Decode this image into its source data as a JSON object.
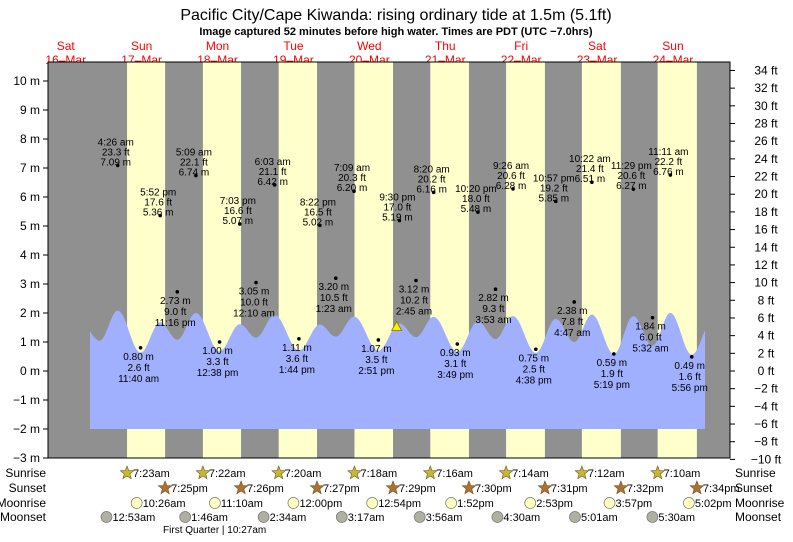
{
  "chart_data": {
    "type": "area",
    "title": "Pacific City/Cape Kiwanda: rising  ordinary tide at 1.5m (5.1ft)",
    "subtitle": "Image captured 52 minutes before high water. Times are PDT (UTC −7.0hrs)",
    "y_left_unit": "m",
    "y_right_unit": "ft",
    "ylim_m": [
      -3,
      10
    ],
    "left_ticks": [
      "10 m",
      "9 m",
      "8 m",
      "7 m",
      "6 m",
      "5 m",
      "4 m",
      "3 m",
      "2 m",
      "1 m",
      "0 m",
      "−1 m",
      "−2 m",
      "−3 m"
    ],
    "right_ticks": [
      "34 ft",
      "32 ft",
      "30 ft",
      "28 ft",
      "26 ft",
      "24 ft",
      "22 ft",
      "20 ft",
      "18 ft",
      "16 ft",
      "14 ft",
      "12 ft",
      "10 ft",
      "8 ft",
      "6 ft",
      "4 ft",
      "2 ft",
      "0 ft",
      "−2 ft",
      "−4 ft",
      "−6 ft",
      "−8 ft",
      "−10 ft"
    ],
    "days": [
      {
        "dow": "Sat",
        "date": "16–Mar"
      },
      {
        "dow": "Sun",
        "date": "17–Mar"
      },
      {
        "dow": "Mon",
        "date": "18–Mar"
      },
      {
        "dow": "Tue",
        "date": "19–Mar"
      },
      {
        "dow": "Wed",
        "date": "20–Mar"
      },
      {
        "dow": "Thu",
        "date": "21–Mar"
      },
      {
        "dow": "Fri",
        "date": "22–Mar"
      },
      {
        "dow": "Sat",
        "date": "23–Mar"
      },
      {
        "dow": "Sun",
        "date": "24–Mar"
      }
    ],
    "tides": [
      {
        "day": 1,
        "time": "4:26 am",
        "ft": "23.3 ft",
        "m": "7.09 m",
        "h": 7.09,
        "type": "high"
      },
      {
        "day": 1,
        "time": "11:40 am",
        "ft": "2.6 ft",
        "m": "0.80 m",
        "h": 0.8,
        "type": "low"
      },
      {
        "day": 1,
        "time": "5:52 pm",
        "ft": "17.6 ft",
        "m": "5.36 m",
        "h": 5.36,
        "type": "high"
      },
      {
        "day": 1,
        "time": "11:16 pm",
        "ft": "9.0 ft",
        "m": "2.73 m",
        "h": 2.73,
        "type": "low"
      },
      {
        "day": 2,
        "time": "5:09 am",
        "ft": "22.1 ft",
        "m": "6.74 m",
        "h": 6.74,
        "type": "high"
      },
      {
        "day": 2,
        "time": "12:38 pm",
        "ft": "3.3 ft",
        "m": "1.00 m",
        "h": 1.0,
        "type": "low"
      },
      {
        "day": 2,
        "time": "7:03 pm",
        "ft": "16.6 ft",
        "m": "5.07 m",
        "h": 5.07,
        "type": "high"
      },
      {
        "day": 3,
        "time": "12:10 am",
        "ft": "10.0 ft",
        "m": "3.05 m",
        "h": 3.05,
        "type": "low"
      },
      {
        "day": 3,
        "time": "6:03 am",
        "ft": "21.1 ft",
        "m": "6.42 m",
        "h": 6.42,
        "type": "high"
      },
      {
        "day": 3,
        "time": "1:44 pm",
        "ft": "3.6 ft",
        "m": "1.11 m",
        "h": 1.11,
        "type": "low"
      },
      {
        "day": 3,
        "time": "8:22 pm",
        "ft": "16.5 ft",
        "m": "5.02 m",
        "h": 5.02,
        "type": "high"
      },
      {
        "day": 4,
        "time": "1:23 am",
        "ft": "10.5 ft",
        "m": "3.20 m",
        "h": 3.2,
        "type": "low"
      },
      {
        "day": 4,
        "time": "7:09 am",
        "ft": "20.3 ft",
        "m": "6.20 m",
        "h": 6.2,
        "type": "high"
      },
      {
        "day": 4,
        "time": "2:51 pm",
        "ft": "3.5 ft",
        "m": "1.07 m",
        "h": 1.07,
        "type": "low"
      },
      {
        "day": 4,
        "time": "9:30 pm",
        "ft": "17.0 ft",
        "m": "5.19 m",
        "h": 5.19,
        "type": "high"
      },
      {
        "day": 5,
        "time": "2:45 am",
        "ft": "10.2 ft",
        "m": "3.12 m",
        "h": 3.12,
        "type": "low"
      },
      {
        "day": 5,
        "time": "8:20 am",
        "ft": "20.2 ft",
        "m": "6.16 m",
        "h": 6.16,
        "type": "high"
      },
      {
        "day": 5,
        "time": "3:49 pm",
        "ft": "3.1 ft",
        "m": "0.93 m",
        "h": 0.93,
        "type": "low"
      },
      {
        "day": 5,
        "time": "10:20 pm",
        "ft": "18.0 ft",
        "m": "5.48 m",
        "h": 5.48,
        "type": "high"
      },
      {
        "day": 6,
        "time": "3:53 am",
        "ft": "9.3 ft",
        "m": "2.82 m",
        "h": 2.82,
        "type": "low"
      },
      {
        "day": 6,
        "time": "9:26 am",
        "ft": "20.6 ft",
        "m": "6.28 m",
        "h": 6.28,
        "type": "high"
      },
      {
        "day": 6,
        "time": "4:38 pm",
        "ft": "2.5 ft",
        "m": "0.75 m",
        "h": 0.75,
        "type": "low"
      },
      {
        "day": 6,
        "time": "10:57 pm",
        "ft": "19.2 ft",
        "m": "5.85 m",
        "h": 5.85,
        "type": "high"
      },
      {
        "day": 7,
        "time": "4:47 am",
        "ft": "7.8 ft",
        "m": "2.38 m",
        "h": 2.38,
        "type": "low"
      },
      {
        "day": 7,
        "time": "10:22 am",
        "ft": "21.4 ft",
        "m": "6.51 m",
        "h": 6.51,
        "type": "high"
      },
      {
        "day": 7,
        "time": "5:19 pm",
        "ft": "1.9 ft",
        "m": "0.59 m",
        "h": 0.59,
        "type": "low"
      },
      {
        "day": 7,
        "time": "11:29 pm",
        "ft": "20.6 ft",
        "m": "6.27 m",
        "h": 6.27,
        "type": "high"
      },
      {
        "day": 8,
        "time": "5:32 am",
        "ft": "6.0 ft",
        "m": "1.84 m",
        "h": 1.84,
        "type": "low"
      },
      {
        "day": 8,
        "time": "11:11 am",
        "ft": "22.2 ft",
        "m": "6.76 m",
        "h": 6.76,
        "type": "high"
      },
      {
        "day": 8,
        "time": "5:56 pm",
        "ft": "1.6 ft",
        "m": "0.49 m",
        "h": 0.49,
        "type": "low"
      }
    ],
    "current": {
      "day": 4,
      "time": "8:38 pm",
      "level_m": 1.5
    },
    "rows": {
      "sunrise": {
        "label": "Sunrise",
        "events": [
          {
            "day": 1,
            "time": "7:23am"
          },
          {
            "day": 2,
            "time": "7:22am"
          },
          {
            "day": 3,
            "time": "7:20am"
          },
          {
            "day": 4,
            "time": "7:18am"
          },
          {
            "day": 5,
            "time": "7:16am"
          },
          {
            "day": 6,
            "time": "7:14am"
          },
          {
            "day": 7,
            "time": "7:12am"
          },
          {
            "day": 8,
            "time": "7:10am"
          }
        ]
      },
      "sunset": {
        "label": "Sunset",
        "events": [
          {
            "day": 1,
            "time": "7:25pm"
          },
          {
            "day": 2,
            "time": "7:26pm"
          },
          {
            "day": 3,
            "time": "7:27pm"
          },
          {
            "day": 4,
            "time": "7:29pm"
          },
          {
            "day": 5,
            "time": "7:30pm"
          },
          {
            "day": 6,
            "time": "7:31pm"
          },
          {
            "day": 7,
            "time": "7:32pm"
          },
          {
            "day": 8,
            "time": "7:34pm"
          }
        ]
      },
      "moonrise": {
        "label": "Moonrise",
        "events": [
          {
            "day": 1,
            "time": "10:26am"
          },
          {
            "day": 2,
            "time": "11:10am"
          },
          {
            "day": 3,
            "time": "12:00pm"
          },
          {
            "day": 4,
            "time": "12:54pm"
          },
          {
            "day": 5,
            "time": "1:52pm"
          },
          {
            "day": 6,
            "time": "2:53pm"
          },
          {
            "day": 7,
            "time": "3:57pm"
          },
          {
            "day": 8,
            "time": "5:02pm"
          }
        ]
      },
      "moonset": {
        "label": "Moonset",
        "events": [
          {
            "day": 1,
            "time": "12:53am"
          },
          {
            "day": 2,
            "time": "1:46am"
          },
          {
            "day": 3,
            "time": "2:34am"
          },
          {
            "day": 4,
            "time": "3:17am"
          },
          {
            "day": 5,
            "time": "3:56am"
          },
          {
            "day": 6,
            "time": "4:30am"
          },
          {
            "day": 7,
            "time": "5:01am"
          },
          {
            "day": 8,
            "time": "5:30am"
          }
        ]
      }
    },
    "moon_phase": {
      "label": "First Quarter | 10:27am",
      "day": 2,
      "time": "10:27am"
    },
    "colors": {
      "night": "#909090",
      "day": "#ffffcc",
      "water": "#a0b0ff",
      "day_labels": "#ff0000",
      "sun_rise": "#c8b830",
      "sun_set": "#b07030",
      "moonrise": "#ffffc0",
      "moonset": "#b0b0a0"
    }
  }
}
